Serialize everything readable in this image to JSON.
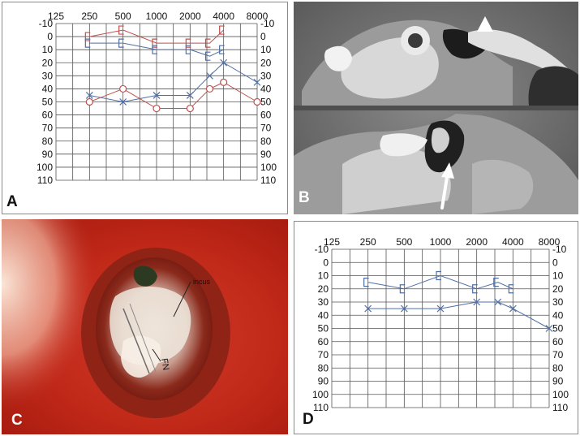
{
  "figure": {
    "panel_a": {
      "label": "A",
      "chart_data": {
        "type": "line",
        "title": "",
        "xlabel": "",
        "ylabel": "",
        "x_ticks": [
          "125",
          "250",
          "500",
          "1000",
          "2000",
          "4000",
          "8000"
        ],
        "y_ticks": [
          "-10",
          "0",
          "10",
          "20",
          "30",
          "40",
          "50",
          "60",
          "70",
          "80",
          "90",
          "100",
          "110"
        ],
        "ylim": [
          -10,
          110
        ],
        "y_inverted": true,
        "grid": true,
        "series": [
          {
            "marker": "bracket-left",
            "color": "#c0504d",
            "x": [
              250,
              500,
              1000,
              2000,
              3000,
              4000
            ],
            "y": [
              0,
              -5,
              5,
              5,
              5,
              -5
            ]
          },
          {
            "marker": "bracket-left",
            "color": "#4f6fa3",
            "x": [
              250,
              500,
              1000,
              2000,
              3000,
              4000
            ],
            "y": [
              5,
              5,
              10,
              10,
              15,
              10
            ]
          },
          {
            "marker": "x",
            "color": "#4f6fa3",
            "x": [
              250,
              500,
              1000,
              2000,
              3000,
              4000,
              8000
            ],
            "y": [
              45,
              50,
              45,
              45,
              30,
              20,
              35
            ]
          },
          {
            "marker": "circle",
            "color": "#c0504d",
            "x": [
              250,
              500,
              1000,
              2000,
              3000,
              4000,
              8000
            ],
            "y": [
              50,
              40,
              55,
              55,
              40,
              35,
              50
            ]
          }
        ]
      }
    },
    "panel_b": {
      "label": "B"
    },
    "panel_c": {
      "label": "C",
      "annotations": [
        "incus",
        "FN"
      ]
    },
    "panel_d": {
      "label": "D",
      "chart_data": {
        "type": "line",
        "title": "",
        "xlabel": "",
        "ylabel": "",
        "x_ticks": [
          "125",
          "250",
          "500",
          "1000",
          "2000",
          "4000",
          "8000"
        ],
        "y_ticks": [
          "-10",
          "0",
          "10",
          "20",
          "30",
          "40",
          "50",
          "60",
          "70",
          "80",
          "90",
          "100",
          "110"
        ],
        "ylim": [
          -10,
          110
        ],
        "y_inverted": true,
        "grid": true,
        "series": [
          {
            "marker": "bracket-left",
            "color": "#4f6fa3",
            "x": [
              250,
              500,
              1000,
              2000,
              3000,
              4000
            ],
            "y": [
              15,
              20,
              10,
              20,
              15,
              20
            ]
          },
          {
            "marker": "x",
            "color": "#4f6fa3",
            "x": [
              250,
              500,
              1000,
              2000,
              3000,
              4000,
              8000
            ],
            "y": [
              35,
              35,
              35,
              30,
              30,
              35,
              50
            ]
          }
        ]
      }
    }
  }
}
